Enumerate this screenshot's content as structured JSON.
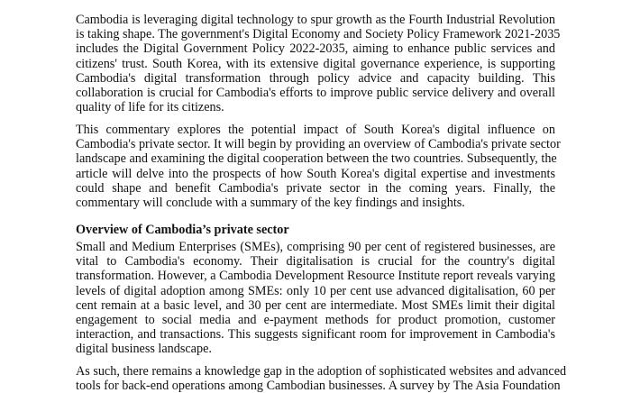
{
  "paragraphs": [
    {
      "lines": [
        "Cambodia is leveraging digital technology to spur growth as the Fourth Industrial Revolution",
        "is taking shape. The government's Digital Economy and Society Policy Framework 2021-2035",
        "includes the Digital Government Policy 2022-2035, aiming to enhance public services and",
        "citizens' trust. South Korea, with its extensive digital governance experience, is supporting",
        "Cambodia's digital transformation through policy advice and capacity building. This",
        "collaboration is crucial for Cambodia's efforts to improve public service delivery and overall",
        "quality of life for its citizens."
      ]
    },
    {
      "lines": [
        "This commentary explores the potential impact of South Korea's digital influence on",
        "Cambodia's private sector. It will begin by providing an overview of Cambodia's private sector",
        "landscape and examining the digital cooperation between the two countries. Subsequently, the",
        "article will delve into the prospects of how South Korea's digital expertise and investments",
        "could shape and benefit Cambodia's private sector in the coming years. Finally, the",
        "commentary will conclude with a summary of the key findings and insights."
      ]
    },
    {
      "heading": "Overview of Cambodia’s private sector"
    },
    {
      "lines": [
        "Small and Medium Enterprises (SMEs), comprising 90 per cent of registered businesses, are",
        "vital to Cambodia's economy. Their digitalisation is crucial for the country's digital",
        "transformation. However, a Cambodia Development Resource Institute report reveals varying",
        "levels of digital adoption among SMEs: only 10 per cent use advanced digitalisation, 60 per",
        "cent remain at a basic level, and 30 per cent are intermediate. Most SMEs limit their digital",
        "engagement to social media and e-payment methods for product promotion, customer",
        "interaction, and transactions. This suggests significant room for improvement in Cambodia's",
        "digital business landscape."
      ]
    },
    {
      "lines": [
        "As such, there remains a knowledge gap in the adoption of sophisticated websites and advanced",
        "tools for back-end operations among Cambodian businesses. A survey by The Asia Foundation"
      ]
    }
  ]
}
